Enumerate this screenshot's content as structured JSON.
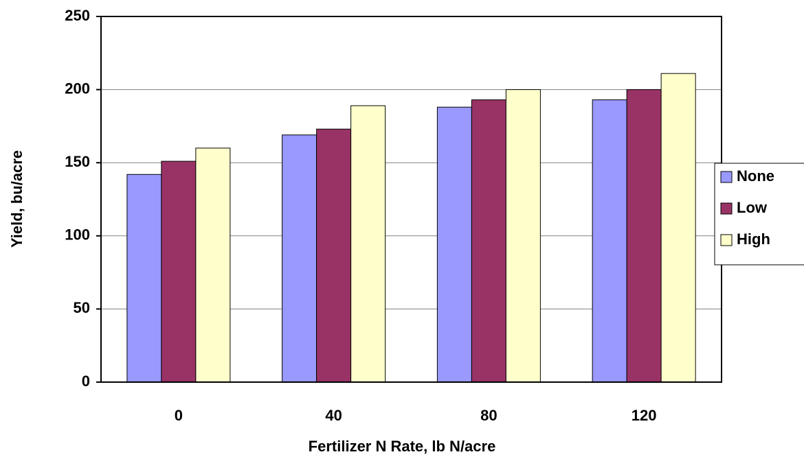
{
  "chart_data": {
    "type": "bar",
    "x_label": "Fertilizer N Rate, lb N/acre",
    "y_label": "Yield, bu/acre",
    "categories": [
      "0",
      "40",
      "80",
      "120"
    ],
    "series": [
      {
        "name": "None",
        "color": "#9999ff",
        "values": [
          142,
          169,
          188,
          193
        ]
      },
      {
        "name": "Low",
        "color": "#993366",
        "values": [
          151,
          173,
          193,
          200
        ]
      },
      {
        "name": "High",
        "color": "#ffffcc",
        "values": [
          160,
          189,
          200,
          211
        ]
      }
    ],
    "ylim": [
      0,
      250
    ],
    "yticks": [
      0,
      50,
      100,
      150,
      200,
      250
    ],
    "grid": true,
    "legend": "right"
  }
}
